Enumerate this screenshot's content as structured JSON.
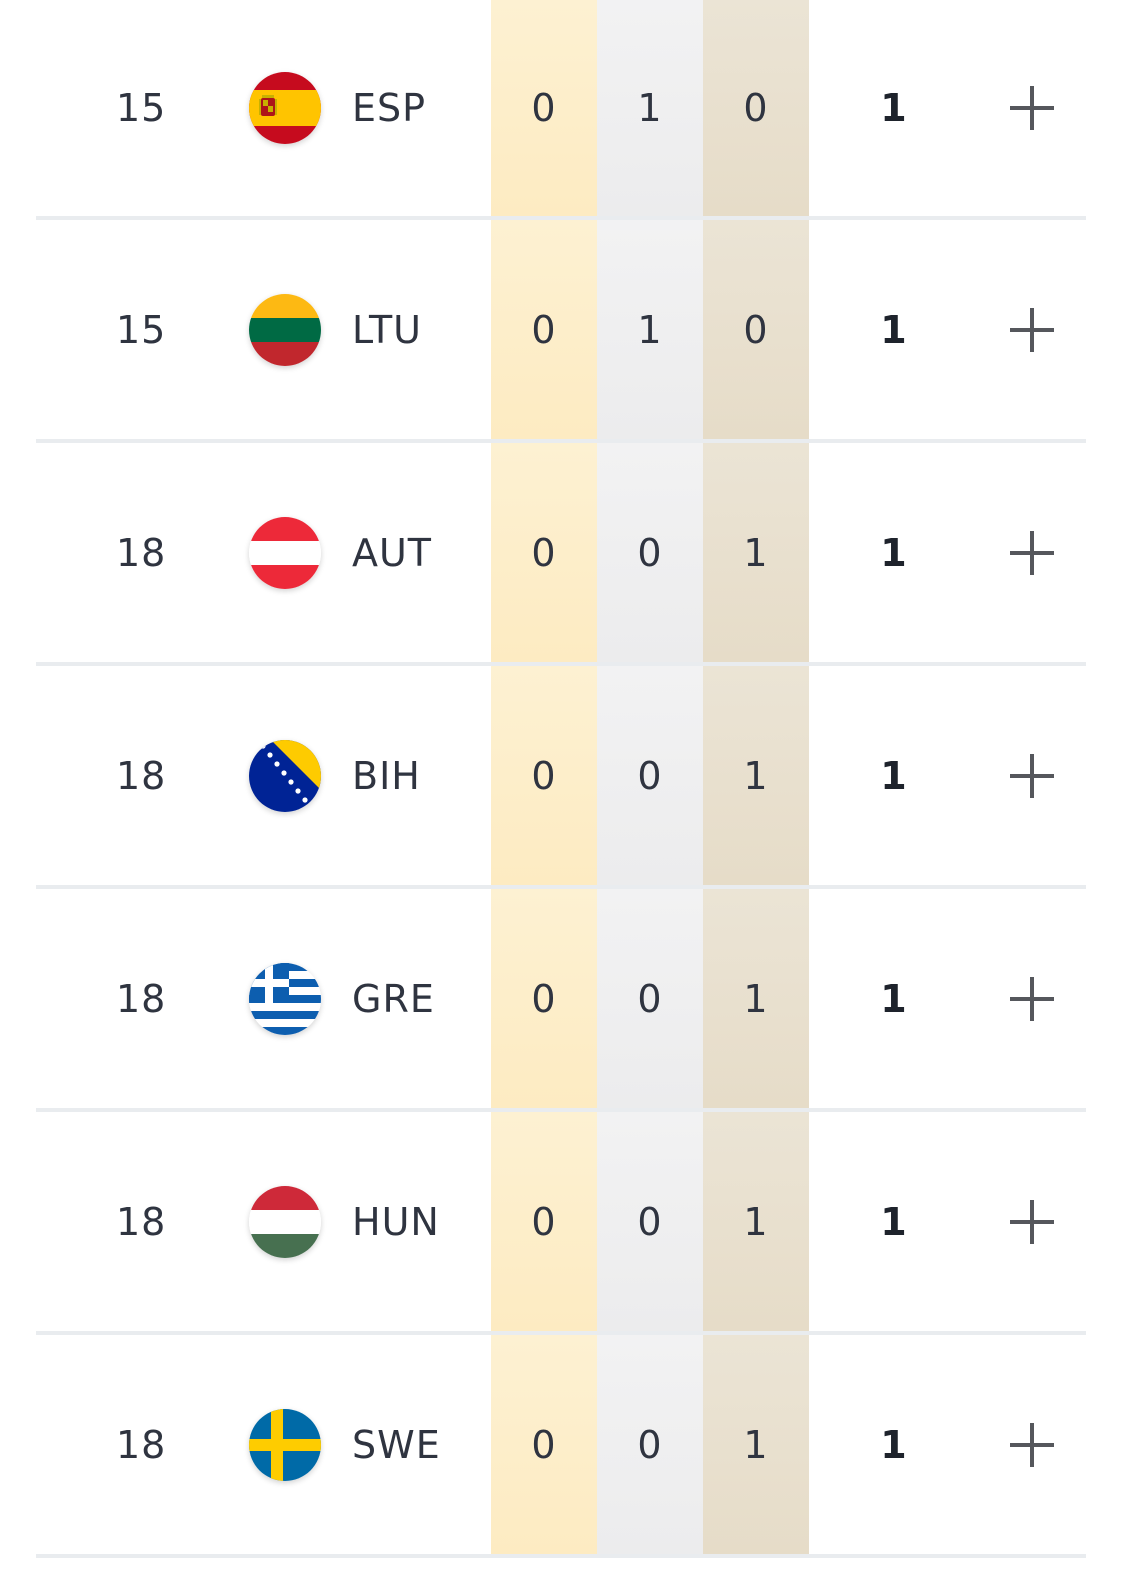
{
  "rows": [
    {
      "rank": "15",
      "flag": "spain-flag",
      "code": "ESP",
      "gold": "0",
      "silver": "1",
      "bronze": "0",
      "total": "1",
      "icon": "plus-icon"
    },
    {
      "rank": "15",
      "flag": "lithuania-flag",
      "code": "LTU",
      "gold": "0",
      "silver": "1",
      "bronze": "0",
      "total": "1",
      "icon": "plus-icon"
    },
    {
      "rank": "18",
      "flag": "austria-flag",
      "code": "AUT",
      "gold": "0",
      "silver": "0",
      "bronze": "1",
      "total": "1",
      "icon": "plus-icon"
    },
    {
      "rank": "18",
      "flag": "bosnia-herzegovina-flag",
      "code": "BIH",
      "gold": "0",
      "silver": "0",
      "bronze": "1",
      "total": "1",
      "icon": "plus-icon"
    },
    {
      "rank": "18",
      "flag": "greece-flag",
      "code": "GRE",
      "gold": "0",
      "silver": "0",
      "bronze": "1",
      "total": "1",
      "icon": "plus-icon"
    },
    {
      "rank": "18",
      "flag": "hungary-flag",
      "code": "HUN",
      "gold": "0",
      "silver": "0",
      "bronze": "1",
      "total": "1",
      "icon": "plus-icon"
    },
    {
      "rank": "18",
      "flag": "sweden-flag",
      "code": "SWE",
      "gold": "0",
      "silver": "0",
      "bronze": "1",
      "total": "1",
      "icon": "plus-icon"
    }
  ],
  "colors": {
    "gold_column": "#fdecc4",
    "silver_column": "#efeff0",
    "bronze_column": "#e8dfcc",
    "divider": "#e9ecef",
    "text": "#2f3440"
  }
}
